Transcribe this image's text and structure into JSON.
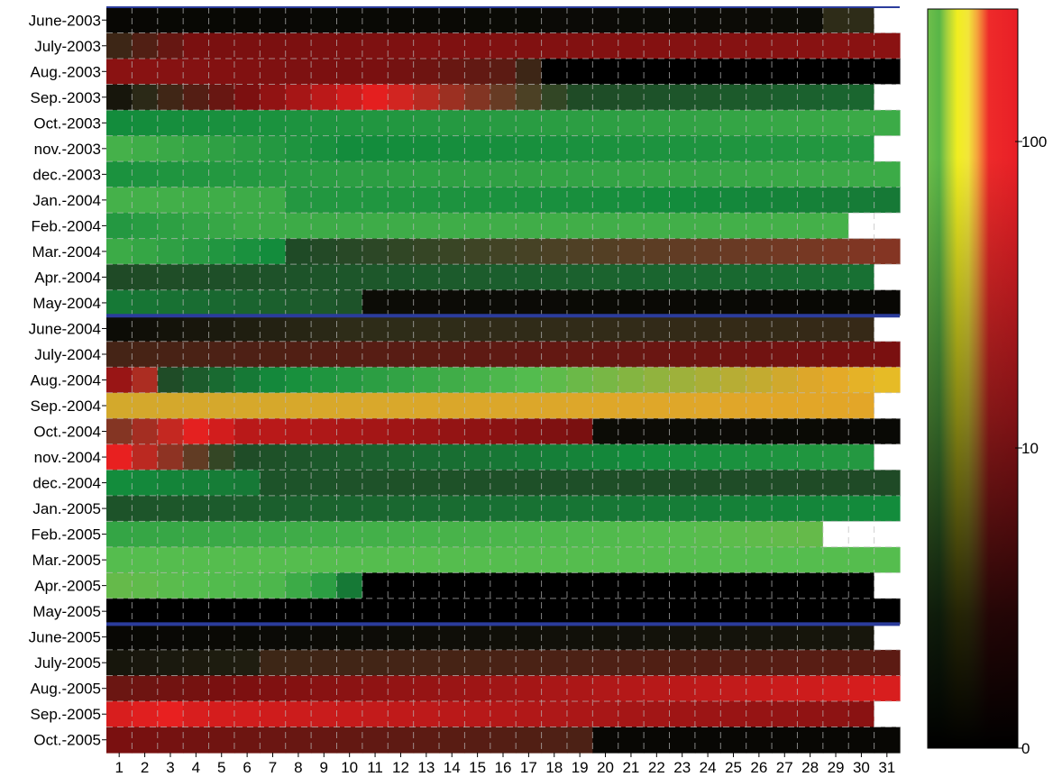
{
  "chart_data": {
    "type": "heatmap",
    "title": "",
    "xlabel": "",
    "ylabel": "",
    "x": [
      1,
      2,
      3,
      4,
      5,
      6,
      7,
      8,
      9,
      10,
      11,
      12,
      13,
      14,
      15,
      16,
      17,
      18,
      19,
      20,
      21,
      22,
      23,
      24,
      25,
      26,
      27,
      28,
      29,
      30,
      31
    ],
    "rows": [
      "June-2003",
      "July-2003",
      "Aug.-2003",
      "Sep.-2003",
      "Oct.-2003",
      "nov.-2003",
      "dec.-2003",
      "Jan.-2004",
      "Feb.-2004",
      "Mar.-2004",
      "Apr.-2004",
      "May-2004",
      "June-2004",
      "July-2004",
      "Aug.-2004",
      "Sep.-2004",
      "Oct.-2004",
      "nov.-2004",
      "dec.-2004",
      "Jan.-2005",
      "Feb.-2005",
      "Mar.-2005",
      "Apr.-2005",
      "May-2005",
      "June-2005",
      "July-2005",
      "Aug.-2005",
      "Sep.-2005",
      "Oct.-2005"
    ],
    "days_in_month": [
      30,
      31,
      31,
      30,
      31,
      30,
      31,
      31,
      29,
      31,
      30,
      31,
      30,
      31,
      31,
      30,
      31,
      30,
      31,
      31,
      28,
      31,
      30,
      31,
      30,
      31,
      31,
      30,
      31
    ],
    "segments": [
      [
        [
          1,
          28,
          0.5,
          0.8
        ],
        [
          29,
          30,
          3,
          3
        ]
      ],
      [
        [
          1,
          4,
          4,
          8
        ],
        [
          5,
          31,
          8,
          9
        ]
      ],
      [
        [
          1,
          10,
          9,
          8
        ],
        [
          11,
          16,
          8,
          6
        ],
        [
          17,
          17,
          4,
          4
        ],
        [
          18,
          31,
          0,
          0
        ]
      ],
      [
        [
          1,
          30,
          1.5,
          40
        ]
      ],
      [
        [
          1,
          31,
          60,
          110
        ]
      ],
      [
        [
          1,
          10,
          120,
          60
        ],
        [
          11,
          30,
          60,
          80
        ]
      ],
      [
        [
          1,
          10,
          70,
          90
        ],
        [
          11,
          31,
          90,
          110
        ]
      ],
      [
        [
          1,
          7,
          120,
          110
        ],
        [
          8,
          31,
          80,
          50
        ]
      ],
      [
        [
          1,
          6,
          80,
          110
        ],
        [
          7,
          29,
          110,
          120
        ]
      ],
      [
        [
          1,
          7,
          110,
          60
        ],
        [
          8,
          31,
          25,
          20
        ]
      ],
      [
        [
          1,
          30,
          25,
          45
        ]
      ],
      [
        [
          1,
          10,
          50,
          30
        ],
        [
          11,
          31,
          0.8,
          0.5
        ]
      ],
      [
        [
          1,
          10,
          0.8,
          3
        ],
        [
          11,
          30,
          3,
          3.5
        ]
      ],
      [
        [
          1,
          31,
          4.5,
          8
        ]
      ],
      [
        [
          1,
          31,
          10,
          250
        ]
      ],
      [
        [
          1,
          30,
          220,
          230
        ]
      ],
      [
        [
          1,
          6,
          20,
          12
        ],
        [
          7,
          19,
          12,
          8
        ],
        [
          20,
          31,
          0.8,
          0.6
        ]
      ],
      [
        [
          1,
          30,
          15,
          80
        ]
      ],
      [
        [
          1,
          6,
          60,
          50
        ],
        [
          7,
          31,
          30,
          25
        ]
      ],
      [
        [
          1,
          31,
          30,
          60
        ]
      ],
      [
        [
          1,
          28,
          100,
          150
        ]
      ],
      [
        [
          1,
          31,
          140,
          140
        ]
      ],
      [
        [
          1,
          7,
          150,
          130
        ],
        [
          8,
          9,
          110,
          90
        ],
        [
          10,
          10,
          50,
          50
        ],
        [
          11,
          30,
          0,
          0
        ]
      ],
      [
        [
          1,
          31,
          0,
          0
        ]
      ],
      [
        [
          1,
          30,
          0.5,
          1.5
        ]
      ],
      [
        [
          1,
          6,
          1.5,
          2
        ],
        [
          7,
          31,
          4,
          6
        ]
      ],
      [
        [
          1,
          31,
          7,
          14
        ]
      ],
      [
        [
          1,
          3,
          14,
          15
        ],
        [
          4,
          30,
          14,
          9
        ]
      ],
      [
        [
          1,
          19,
          8,
          5
        ],
        [
          20,
          31,
          0.5,
          0.5
        ]
      ]
    ],
    "year_separators_after": [
      "May-2004",
      "May-2005"
    ],
    "gridlines": "dashed",
    "colorbar": {
      "scale": "log",
      "ticks": [
        "0",
        "10",
        "100"
      ],
      "tick_values": [
        0,
        10,
        100
      ],
      "stops": [
        {
          "value": 0,
          "color": "#000000"
        },
        {
          "value": 3,
          "color": "#2e2c18"
        },
        {
          "value": 8,
          "color": "#7a1010"
        },
        {
          "value": 15,
          "color": "#e82020"
        },
        {
          "value": 25,
          "color": "#1f4a26"
        },
        {
          "value": 60,
          "color": "#138c3c"
        },
        {
          "value": 140,
          "color": "#55bd4e"
        },
        {
          "value": 230,
          "color": "#e3a628"
        },
        {
          "value": 300,
          "color": "#eeee20"
        }
      ]
    },
    "colors": {
      "separator": "#2b3c9c",
      "missing": "#ffffff",
      "grid": "#bbbbbb"
    }
  }
}
